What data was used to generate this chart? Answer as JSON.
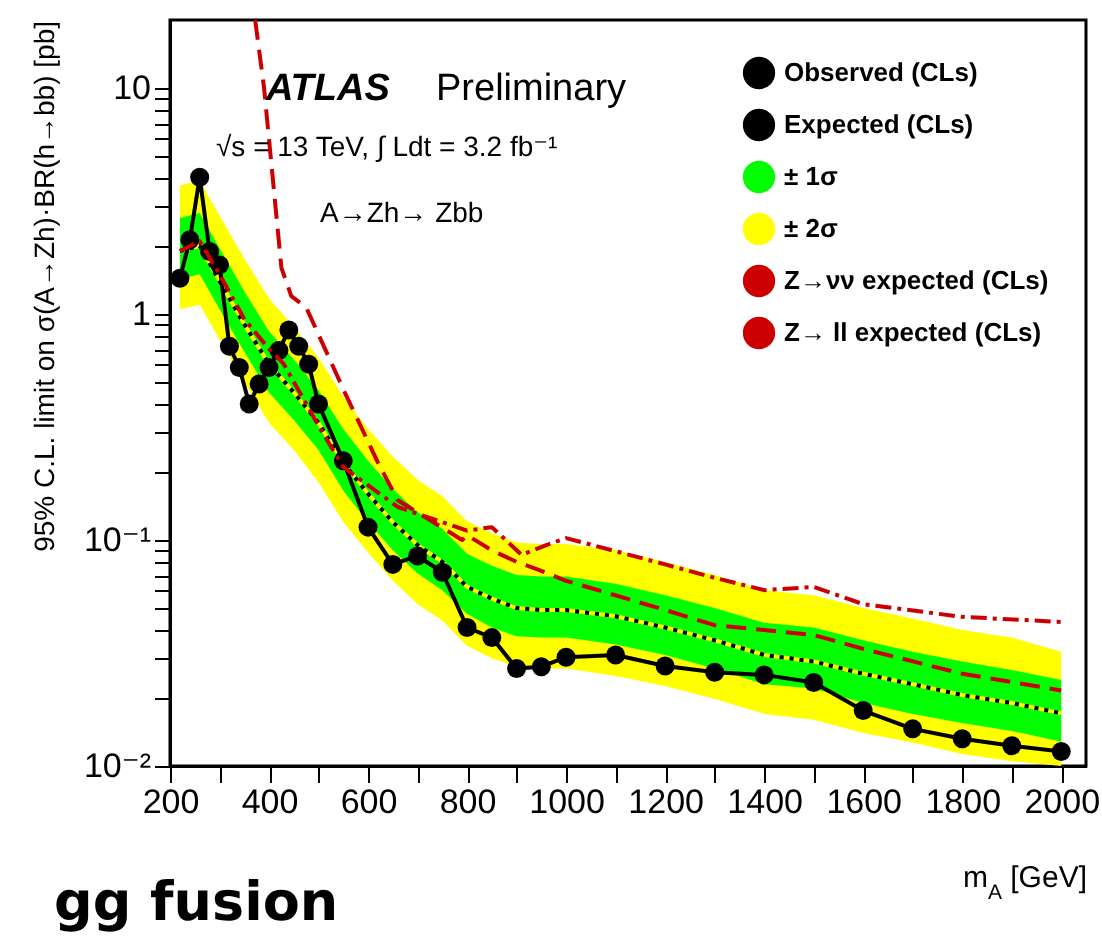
{
  "chart_data": {
    "type": "line",
    "title": "gg fusion",
    "xlabel": "m$_{A}$ [GeV]",
    "ylabel": "95% C.L. limit on σ(A→Zh)·BR(h→bb) [pb]",
    "annotations": [
      "ATLAS",
      "Preliminary",
      "√s = 13 TeV,  ∫ Ldt = 3.2 fb⁻¹",
      "A→Zh→ Zbb"
    ],
    "log": "y",
    "legend": "top right",
    "xlim": [
      200,
      2050
    ],
    "ylim": [
      0.01,
      20
    ],
    "xticks": [
      200,
      {
        "value": 300,
        "label": null
      },
      400,
      {
        "value": 500,
        "label": null
      },
      600,
      {
        "value": 700,
        "label": null
      },
      800,
      {
        "value": 900,
        "label": null
      },
      1000,
      {
        "value": 1100,
        "label": null
      },
      1200,
      {
        "value": 1300,
        "label": null
      },
      1400,
      {
        "value": 1500,
        "label": null
      },
      1600,
      {
        "value": 1700,
        "label": null
      },
      1800,
      {
        "value": 1900,
        "label": null
      },
      2000
    ],
    "yticks": [
      {
        "value": 0.01,
        "label": "10⁻²"
      },
      {
        "value": 0.02,
        "label": null
      },
      {
        "value": 0.03,
        "label": null
      },
      {
        "value": 0.04,
        "label": null
      },
      {
        "value": 0.05,
        "label": null
      },
      {
        "value": 0.06,
        "label": null
      },
      {
        "value": 0.07,
        "label": null
      },
      {
        "value": 0.08,
        "label": null
      },
      {
        "value": 0.09,
        "label": null
      },
      {
        "value": 0.1,
        "label": "10⁻¹"
      },
      {
        "value": 0.2,
        "label": null
      },
      {
        "value": 0.3,
        "label": null
      },
      {
        "value": 0.4,
        "label": null
      },
      {
        "value": 0.5,
        "label": null
      },
      {
        "value": 0.6,
        "label": null
      },
      {
        "value": 0.7,
        "label": null
      },
      {
        "value": 0.8,
        "label": null
      },
      {
        "value": 0.9,
        "label": null
      },
      1,
      {
        "value": 2,
        "label": null
      },
      {
        "value": 3,
        "label": null
      },
      {
        "value": 4,
        "label": null
      },
      {
        "value": 5,
        "label": null
      },
      {
        "value": 6,
        "label": null
      },
      {
        "value": 7,
        "label": null
      },
      {
        "value": 8,
        "label": null
      },
      {
        "value": 9,
        "label": null
      },
      10
    ],
    "series": [
      {
        "name": "Observed (CLs)",
        "type": "line",
        "color": "#000000",
        "marker": "circle",
        "line_style": "solid",
        "x": [
          220,
          240,
          260,
          280,
          300,
          320,
          340,
          360,
          380,
          400,
          420,
          440,
          460,
          480,
          500,
          550,
          600,
          650,
          700,
          750,
          800,
          850,
          900,
          950,
          1000,
          1100,
          1200,
          1300,
          1400,
          1500,
          1600,
          1700,
          1800,
          1900,
          2000
        ],
        "values": [
          1.44,
          2.13,
          4.03,
          1.89,
          1.65,
          0.72,
          0.58,
          0.4,
          0.49,
          0.58,
          0.69,
          0.85,
          0.72,
          0.6,
          0.4,
          0.224,
          0.114,
          0.078,
          0.085,
          0.072,
          0.041,
          0.037,
          0.027,
          0.0275,
          0.0303,
          0.031,
          0.0277,
          0.026,
          0.0253,
          0.0234,
          0.0176,
          0.0146,
          0.0132,
          0.0123,
          0.0116
        ]
      },
      {
        "name": "Expected (CLs)",
        "type": "line",
        "color": "#000000",
        "line_style": "dotted",
        "x": [
          220,
          260,
          300,
          350,
          400,
          450,
          500,
          550,
          600,
          650,
          700,
          750,
          800,
          850,
          900,
          950,
          1000,
          1100,
          1200,
          1300,
          1400,
          1500,
          1600,
          1700,
          1800,
          1900,
          2000
        ],
        "values": [
          1.9,
          2.0,
          1.4,
          0.9,
          0.6,
          0.45,
          0.33,
          0.22,
          0.16,
          0.12,
          0.095,
          0.08,
          0.062,
          0.055,
          0.05,
          0.049,
          0.049,
          0.046,
          0.041,
          0.036,
          0.031,
          0.029,
          0.0256,
          0.023,
          0.0206,
          0.019,
          0.0171
        ]
      },
      {
        "name": "± 1σ",
        "type": "line",
        "color": "#00ff00",
        "line_style": "dotted",
        "x": [
          220,
          260,
          300,
          350,
          400,
          450,
          500,
          550,
          600,
          650,
          700,
          750,
          800,
          850,
          900,
          950,
          1000,
          1100,
          1200,
          1300,
          1400,
          1500,
          1600,
          1700,
          1800,
          1900,
          2000
        ],
        "values": [
          1.9,
          2.0,
          1.4,
          0.9,
          0.6,
          0.45,
          0.33,
          0.22,
          0.16,
          0.12,
          0.095,
          0.08,
          0.062,
          0.055,
          0.05,
          0.049,
          0.049,
          0.046,
          0.041,
          0.036,
          0.031,
          0.029,
          0.0256,
          0.023,
          0.0206,
          0.019,
          0.0171
        ],
        "lower": [
          1.43,
          1.5,
          1.05,
          0.68,
          0.45,
          0.34,
          0.25,
          0.165,
          0.12,
          0.09,
          0.071,
          0.06,
          0.047,
          0.041,
          0.0375,
          0.037,
          0.037,
          0.0345,
          0.031,
          0.027,
          0.023,
          0.022,
          0.019,
          0.017,
          0.0155,
          0.0143,
          0.0128
        ],
        "upper": [
          2.66,
          2.8,
          1.96,
          1.26,
          0.84,
          0.63,
          0.46,
          0.31,
          0.224,
          0.168,
          0.133,
          0.112,
          0.087,
          0.077,
          0.07,
          0.069,
          0.069,
          0.064,
          0.057,
          0.05,
          0.043,
          0.041,
          0.036,
          0.032,
          0.029,
          0.0266,
          0.024
        ]
      },
      {
        "name": "± 2σ",
        "type": "line",
        "color": "#ffff00",
        "line_style": "solid",
        "x": [
          220,
          260,
          300,
          350,
          400,
          450,
          500,
          550,
          600,
          650,
          700,
          750,
          800,
          850,
          900,
          950,
          1000,
          1100,
          1200,
          1300,
          1400,
          1500,
          1600,
          1700,
          1800,
          1900,
          2000
        ],
        "values": [
          1.9,
          2.0,
          1.4,
          0.9,
          0.6,
          0.45,
          0.33,
          0.22,
          0.16,
          0.12,
          0.095,
          0.08,
          0.062,
          0.055,
          0.05,
          0.049,
          0.049,
          0.046,
          0.041,
          0.036,
          0.031,
          0.029,
          0.0256,
          0.023,
          0.0206,
          0.019,
          0.0171
        ],
        "lower": [
          1.05,
          1.1,
          0.77,
          0.5,
          0.33,
          0.25,
          0.18,
          0.12,
          0.088,
          0.066,
          0.052,
          0.044,
          0.034,
          0.03,
          0.0275,
          0.027,
          0.027,
          0.025,
          0.0226,
          0.0198,
          0.017,
          0.016,
          0.014,
          0.0127,
          0.0113,
          0.0105,
          0.01
        ],
        "upper": [
          3.7,
          3.9,
          2.73,
          1.76,
          1.17,
          0.88,
          0.64,
          0.43,
          0.31,
          0.234,
          0.185,
          0.156,
          0.121,
          0.107,
          0.0975,
          0.096,
          0.096,
          0.09,
          0.08,
          0.07,
          0.06,
          0.057,
          0.05,
          0.045,
          0.04,
          0.037,
          0.032
        ]
      },
      {
        "name": "Z→νν expected (CLs)",
        "type": "line",
        "color": "#cc0000",
        "line_style": "dashed",
        "x": [
          372,
          390,
          425,
          445,
          475,
          555,
          620,
          660,
          790,
          800,
          850,
          900,
          950,
          1000,
          1200,
          1300,
          1400,
          1500,
          1600,
          1800,
          2000
        ],
        "values": [
          20,
          10,
          1.6,
          1.2,
          1.07,
          0.44,
          0.22,
          0.15,
          0.1,
          0.105,
          0.09,
          0.08,
          0.073,
          0.066,
          0.049,
          0.042,
          0.04,
          0.038,
          0.033,
          0.0256,
          0.0216
        ]
      },
      {
        "name": "Z→ ll expected (CLs)",
        "type": "line",
        "color": "#cc0000",
        "line_style": "dashdot",
        "x": [
          220,
          260,
          300,
          350,
          400,
          430,
          500,
          550,
          660,
          800,
          850,
          910,
          960,
          1000,
          1200,
          1300,
          1400,
          1500,
          1600,
          1800,
          2000
        ],
        "values": [
          1.9,
          2.1,
          1.5,
          0.95,
          0.7,
          0.6,
          0.32,
          0.21,
          0.14,
          0.11,
          0.114,
          0.086,
          0.095,
          0.102,
          0.078,
          0.068,
          0.06,
          0.062,
          0.052,
          0.0457,
          0.0434
        ]
      }
    ]
  }
}
